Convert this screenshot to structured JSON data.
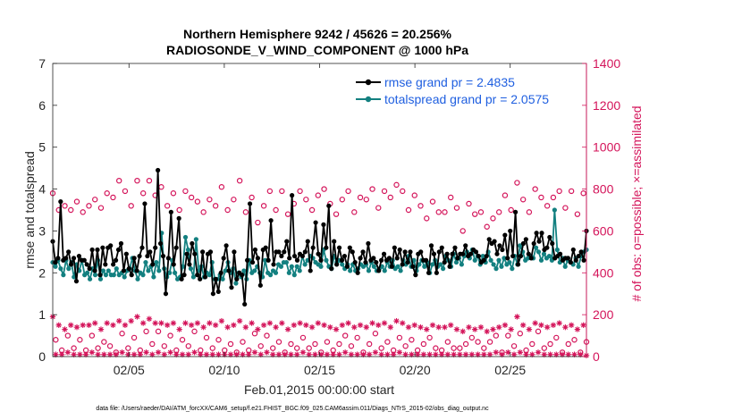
{
  "chart_data": {
    "type": "line",
    "title_line1": "Northern Hemisphere 9242 / 45626 = 20.256%",
    "title_line2": "RADIOSONDE_V_WIND_COMPONENT @ 1000 hPa",
    "xlabel": "Feb.01,2015 00:00:00 start",
    "ylabel_left": "rmse and totalspread",
    "ylabel_right": "# of obs: o=possible; ×=assimilated",
    "x_range_days": [
      0,
      28
    ],
    "ylim_left": [
      0,
      7
    ],
    "ylim_right": [
      0,
      1400
    ],
    "yticks_left": [
      "0",
      "1",
      "2",
      "3",
      "4",
      "5",
      "6",
      "7"
    ],
    "yticks_right": [
      "0",
      "200",
      "400",
      "600",
      "800",
      "1000",
      "1200",
      "1400"
    ],
    "xticks": [
      {
        "day": 4,
        "label": "02/05"
      },
      {
        "day": 9,
        "label": "02/10"
      },
      {
        "day": 14,
        "label": "02/15"
      },
      {
        "day": 19,
        "label": "02/20"
      },
      {
        "day": 24,
        "label": "02/25"
      }
    ],
    "legend": [
      {
        "label": "rmse grand pr = 2.4835",
        "color": "#000000"
      },
      {
        "label": "totalspread grand pr = 2.0575",
        "color": "#138080"
      }
    ],
    "colors": {
      "rmse": "#000000",
      "spread": "#138080",
      "obs": "#d4145a",
      "legend_text": "#1f5fe0"
    },
    "series": [
      {
        "name": "rmse",
        "values": [
          2.75,
          2.25,
          2.35,
          3.7,
          2.3,
          2.35,
          2.5,
          2.2,
          2.35,
          1.8,
          2.4,
          2.3,
          2.3,
          2.2,
          2.1,
          2.55,
          2.05,
          2.55,
          1.95,
          2.6,
          2.2,
          2.6,
          2.65,
          2.2,
          2.3,
          2.55,
          2.7,
          2.05,
          2.45,
          2.1,
          1.95,
          2.35,
          2.05,
          2.4,
          2.6,
          3.65,
          2.4,
          2.5,
          2.2,
          2.6,
          4.45,
          2.7,
          2.4,
          1.5,
          2.35,
          3.45,
          2.2,
          2.6,
          3.3,
          1.85,
          1.95,
          2.45,
          2.2,
          2.7,
          2.45,
          1.95,
          1.85,
          2.5,
          1.9,
          2.45,
          2.5,
          1.5,
          1.85,
          1.55,
          2.0,
          2.35,
          2.65,
          2.05,
          1.65,
          2.5,
          1.85,
          2.0,
          1.95,
          1.25,
          2.3,
          3.65,
          2.25,
          2.55,
          2.35,
          1.7,
          2.55,
          2.6,
          2.3,
          3.25,
          2.2,
          2.5,
          2.5,
          2.4,
          2.5,
          2.75,
          2.35,
          3.85,
          2.4,
          2.3,
          2.45,
          2.4,
          2.5,
          2.75,
          2.05,
          2.6,
          3.2,
          2.45,
          2.3,
          3.15,
          2.6,
          3.6,
          2.1,
          2.75,
          2.2,
          2.6,
          2.3,
          2.4,
          2.15,
          2.6,
          2.5,
          2.25,
          2.0,
          2.35,
          2.5,
          2.25,
          2.7,
          2.3,
          2.35,
          2.25,
          2.05,
          2.3,
          2.45,
          2.3,
          2.35,
          2.15,
          2.6,
          2.35,
          2.55,
          2.2,
          2.5,
          2.25,
          2.5,
          2.15,
          1.95,
          2.45,
          2.5,
          2.3,
          2.3,
          2.0,
          2.65,
          2.45,
          2.0,
          2.5,
          2.6,
          2.25,
          2.45,
          2.15,
          2.45,
          2.6,
          2.35,
          2.45,
          2.45,
          2.65,
          2.4,
          2.45,
          2.55,
          2.5,
          2.4,
          2.25,
          2.3,
          2.4,
          2.8,
          2.7,
          2.75,
          2.45,
          2.65,
          2.55,
          2.9,
          2.35,
          3.0,
          2.4,
          3.45,
          2.2,
          2.4,
          2.7,
          2.8,
          2.45,
          2.35,
          2.7,
          2.95,
          2.75,
          2.95,
          2.55,
          2.6,
          2.85,
          2.7,
          2.35,
          2.4,
          2.45,
          2.3,
          2.35,
          2.35,
          2.25,
          2.55,
          2.3,
          2.4,
          2.5,
          2.3,
          3.0
        ]
      },
      {
        "name": "totalspread",
        "values": [
          2.25,
          2.15,
          2.3,
          2.1,
          1.95,
          2.3,
          2.1,
          2.25,
          1.9,
          2.2,
          2.05,
          2.3,
          1.95,
          2.0,
          1.85,
          2.1,
          1.95,
          2.3,
          1.85,
          2.05,
          1.95,
          2.05,
          1.95,
          1.95,
          2.1,
          1.95,
          2.0,
          1.9,
          2.05,
          2.1,
          2.35,
          2.05,
          1.85,
          2.0,
          1.95,
          2.25,
          2.05,
          2.15,
          1.9,
          2.25,
          2.05,
          2.95,
          2.1,
          1.9,
          2.0,
          2.3,
          2.0,
          1.85,
          1.9,
          2.15,
          2.85,
          2.55,
          2.1,
          1.9,
          2.8,
          2.05,
          2.15,
          1.9,
          2.0,
          1.95,
          2.25,
          1.85,
          1.85,
          1.95,
          1.85,
          2.05,
          2.25,
          2.0,
          2.1,
          1.75,
          2.0,
          1.9,
          2.05,
          1.85,
          2.3,
          2.0,
          2.05,
          2.15,
          2.0,
          1.9,
          2.3,
          2.0,
          1.95,
          2.05,
          2.0,
          2.2,
          2.15,
          2.25,
          2.25,
          2.0,
          2.15,
          1.95,
          2.15,
          2.05,
          2.4,
          2.2,
          2.3,
          2.4,
          2.35,
          2.25,
          2.2,
          2.15,
          2.55,
          2.3,
          2.15,
          2.1,
          2.4,
          2.25,
          2.3,
          2.2,
          2.1,
          2.2,
          2.05,
          2.2,
          2.05,
          2.1,
          2.2,
          2.15,
          2.2,
          2.05,
          2.25,
          2.15,
          2.05,
          2.1,
          2.15,
          2.05,
          2.25,
          2.15,
          2.3,
          2.1,
          2.15,
          2.05,
          2.3,
          2.2,
          2.4,
          2.15,
          2.3,
          2.05,
          2.2,
          2.3,
          2.15,
          2.25,
          2.0,
          2.2,
          2.3,
          2.15,
          2.2,
          2.1,
          2.4,
          2.3,
          2.15,
          2.45,
          2.25,
          2.35,
          2.2,
          2.4,
          2.5,
          2.35,
          2.55,
          2.3,
          2.4,
          2.2,
          2.4,
          2.25,
          2.5,
          2.3,
          2.2,
          2.1,
          2.3,
          2.15,
          2.35,
          2.2,
          2.25,
          2.1,
          2.4,
          2.2,
          2.65,
          2.5,
          2.3,
          2.35,
          2.4,
          2.35,
          2.6,
          2.5,
          2.3,
          2.45,
          2.35,
          2.4,
          2.3,
          3.5,
          2.55,
          2.25,
          2.35,
          2.15,
          2.3,
          2.25,
          2.2,
          2.35,
          2.15,
          2.4,
          2.5,
          2.55
        ]
      },
      {
        "name": "obs_possible",
        "values": [
          780,
          80,
          700,
          30,
          720,
          100,
          700,
          40,
          740,
          80,
          690,
          30,
          720,
          100,
          750,
          40,
          710,
          70,
          780,
          50,
          760,
          20,
          840,
          110,
          790,
          40,
          720,
          90,
          840,
          30,
          780,
          120,
          840,
          60,
          770,
          120,
          810,
          50,
          720,
          100,
          780,
          30,
          700,
          80,
          790,
          50,
          760,
          120,
          740,
          30,
          690,
          90,
          750,
          40,
          720,
          80,
          810,
          30,
          700,
          60,
          750,
          20,
          840,
          70,
          690,
          30,
          760,
          110,
          640,
          50,
          720,
          100,
          790,
          40,
          700,
          70,
          790,
          20,
          680,
          60,
          730,
          40,
          790,
          90,
          750,
          40,
          700,
          60,
          770,
          20,
          800,
          70,
          730,
          30,
          680,
          60,
          750,
          100,
          790,
          50,
          690,
          90,
          760,
          20,
          750,
          60,
          800,
          110,
          710,
          40,
          790,
          70,
          760,
          30,
          820,
          90,
          790,
          50,
          700,
          80,
          770,
          30,
          720,
          60,
          660,
          90,
          740,
          40,
          690,
          30,
          690,
          70,
          760,
          40,
          710,
          40,
          600,
          60,
          730,
          90,
          680,
          70,
          690,
          40,
          620,
          70,
          660,
          100,
          690,
          20,
          770,
          100,
          700,
          50,
          830,
          110,
          750,
          30,
          690,
          60,
          800,
          120,
          760,
          40,
          720,
          60,
          760,
          90,
          790,
          20,
          710,
          60,
          790,
          80,
          680,
          20,
          780,
          70
        ]
      },
      {
        "name": "obs_assimilated",
        "values": [
          190,
          10,
          150,
          10,
          130,
          20,
          150,
          10,
          140,
          10,
          150,
          10,
          150,
          20,
          160,
          10,
          130,
          10,
          160,
          10,
          150,
          10,
          170,
          20,
          150,
          10,
          170,
          10,
          190,
          10,
          160,
          20,
          180,
          10,
          160,
          20,
          160,
          10,
          150,
          20,
          160,
          10,
          130,
          10,
          160,
          10,
          150,
          20,
          160,
          10,
          140,
          10,
          160,
          10,
          150,
          10,
          170,
          10,
          140,
          10,
          150,
          10,
          170,
          10,
          140,
          10,
          160,
          20,
          130,
          10,
          150,
          20,
          160,
          10,
          140,
          10,
          160,
          10,
          130,
          10,
          150,
          10,
          160,
          20,
          150,
          10,
          140,
          10,
          160,
          10,
          150,
          10,
          140,
          10,
          130,
          10,
          150,
          20,
          160,
          10,
          140,
          10,
          150,
          10,
          140,
          10,
          160,
          20,
          150,
          10,
          160,
          10,
          140,
          10,
          170,
          20,
          160,
          10,
          140,
          10,
          150,
          10,
          140,
          10,
          130,
          10,
          150,
          10,
          140,
          10,
          140,
          10,
          150,
          10,
          130,
          10,
          120,
          10,
          140,
          10,
          130,
          10,
          140,
          10,
          120,
          10,
          130,
          20,
          140,
          10,
          150,
          20,
          130,
          10,
          190,
          20,
          150,
          10,
          130,
          10,
          160,
          20,
          150,
          10,
          140,
          10,
          150,
          10,
          160,
          10,
          140,
          10,
          150,
          10,
          130,
          10,
          150,
          5
        ]
      }
    ]
  },
  "footnote": "data file: /Users/raeder/DAI/ATM_forcXX/CAM6_setup/f.e21.FHIST_BGC.f09_025.CAM6assim.011/Diags_NTrS_2015-02/obs_diag_output.nc"
}
